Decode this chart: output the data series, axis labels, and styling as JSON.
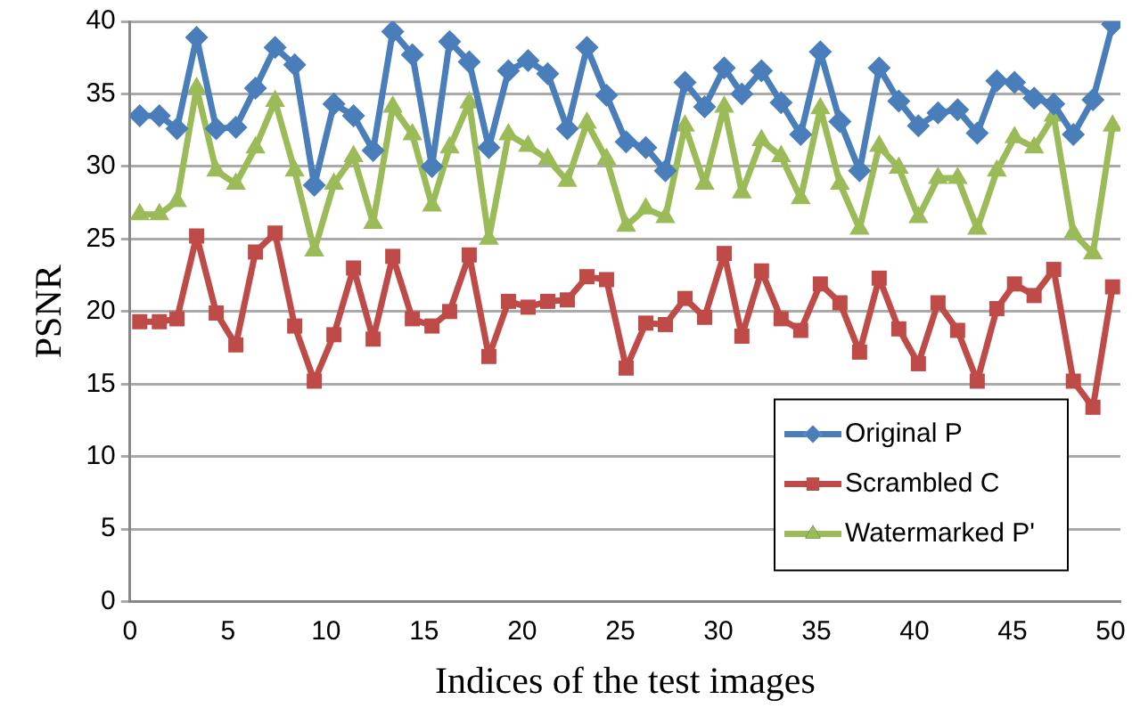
{
  "chart_data": {
    "type": "line",
    "xlabel": "Indices of the test images",
    "ylabel": "PSNR",
    "x": [
      0.5,
      1.5,
      2.4,
      3.4,
      4.4,
      5.4,
      6.4,
      7.4,
      8.4,
      9.4,
      10.4,
      11.4,
      12.4,
      13.4,
      14.4,
      15.4,
      16.3,
      17.3,
      18.3,
      19.3,
      20.3,
      21.3,
      22.3,
      23.3,
      24.3,
      25.3,
      26.3,
      27.3,
      28.3,
      29.3,
      30.3,
      31.2,
      32.2,
      33.2,
      34.2,
      35.2,
      36.2,
      37.2,
      38.2,
      39.2,
      40.2,
      41.2,
      42.2,
      43.2,
      44.2,
      45.1,
      46.1,
      47.1,
      48.1,
      49.1,
      50.1
    ],
    "series": [
      {
        "name": "Original P",
        "color": "#4a7ebb",
        "marker": "diamond",
        "values": [
          33.5,
          33.5,
          32.6,
          38.9,
          32.6,
          32.7,
          35.4,
          38.2,
          37.0,
          28.7,
          34.3,
          33.5,
          31.1,
          39.3,
          37.7,
          30.0,
          38.6,
          37.2,
          31.3,
          36.6,
          37.3,
          36.4,
          32.6,
          38.2,
          34.9,
          31.7,
          31.3,
          29.7,
          35.8,
          34.1,
          36.8,
          35.0,
          36.6,
          34.4,
          32.2,
          37.9,
          33.1,
          29.7,
          36.8,
          34.5,
          32.8,
          33.7,
          33.9,
          32.3,
          35.9,
          35.8,
          34.7,
          34.3,
          32.2,
          34.6,
          39.8
        ]
      },
      {
        "name": "Scrambled C",
        "color": "#be4b48",
        "marker": "square",
        "values": [
          19.3,
          19.3,
          19.5,
          25.2,
          19.9,
          17.7,
          24.1,
          25.4,
          19.0,
          15.2,
          18.4,
          23.0,
          18.1,
          23.8,
          19.5,
          19.0,
          20.0,
          23.9,
          16.9,
          20.7,
          20.3,
          20.7,
          20.8,
          22.4,
          22.2,
          16.1,
          19.2,
          19.1,
          20.9,
          19.6,
          24.0,
          18.3,
          22.8,
          19.5,
          18.7,
          21.9,
          20.6,
          17.2,
          22.3,
          18.8,
          16.4,
          20.6,
          18.7,
          15.2,
          20.2,
          21.9,
          21.1,
          22.9,
          15.2,
          13.4,
          21.7
        ]
      },
      {
        "name": "Watermarked P'",
        "color": "#9bbb59",
        "marker": "triangle",
        "values": [
          26.7,
          26.7,
          27.6,
          35.4,
          29.7,
          28.8,
          31.3,
          34.5,
          29.7,
          24.2,
          28.8,
          30.7,
          26.1,
          34.1,
          32.2,
          27.3,
          31.3,
          34.4,
          25.0,
          32.2,
          31.4,
          30.5,
          29.0,
          33.0,
          30.5,
          25.9,
          27.1,
          26.5,
          32.8,
          28.8,
          34.1,
          28.2,
          31.8,
          30.7,
          27.8,
          34.0,
          28.8,
          25.7,
          31.4,
          29.9,
          26.5,
          29.2,
          29.2,
          25.7,
          29.7,
          32.0,
          31.3,
          33.5,
          25.4,
          24.0,
          32.8
        ]
      }
    ],
    "xlim": [
      0,
      50.5
    ],
    "xticks": [
      0,
      5,
      10,
      15,
      20,
      25,
      30,
      35,
      40,
      45,
      50
    ],
    "ylim": [
      0,
      40
    ],
    "yticks": [
      0,
      5,
      10,
      15,
      20,
      25,
      30,
      35,
      40
    ],
    "grid": "y",
    "legend": "bottom right",
    "line_style": "solid"
  }
}
